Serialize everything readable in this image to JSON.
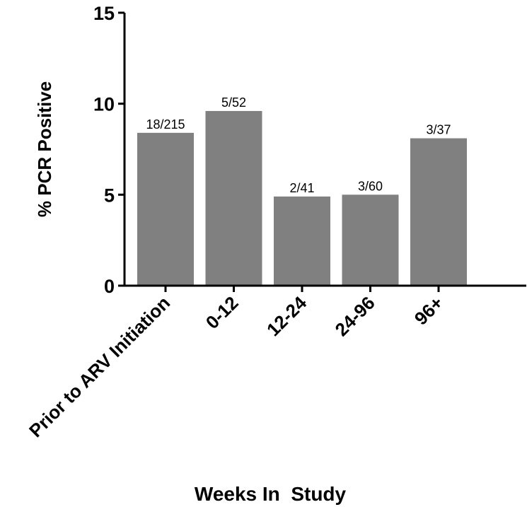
{
  "chart_data": {
    "type": "bar",
    "categories": [
      "Prior to ARV Initiation",
      "0-12",
      "12-24",
      "24-96",
      "96+"
    ],
    "values": [
      8.4,
      9.6,
      4.9,
      5.0,
      8.1
    ],
    "data_labels": [
      "18/215",
      "5/52",
      "2/41",
      "3/60",
      "3/37"
    ],
    "xlabel": "Weeks In  Study",
    "ylabel": "%  PCR Positive",
    "ylim": [
      0,
      15
    ],
    "yticks": [
      0,
      5,
      10,
      15
    ],
    "grid": false,
    "bar_color": "#808080"
  }
}
